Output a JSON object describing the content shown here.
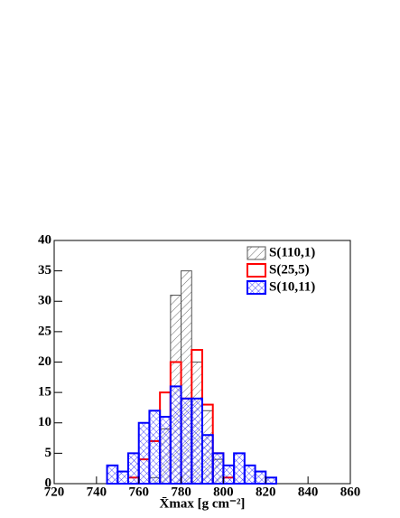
{
  "chart_data": {
    "type": "histogram",
    "x_label": "X̄max [g cm⁻²]",
    "bins": [
      720,
      725,
      730,
      735,
      740,
      745,
      750,
      755,
      760,
      765,
      770,
      775,
      780,
      785,
      790,
      795,
      800,
      805,
      810,
      815,
      820,
      825,
      830,
      835,
      840,
      845,
      850,
      855,
      860
    ],
    "series": [
      {
        "name": "S(110,1)",
        "color": "#555555",
        "hatch": "diagonal",
        "values": [
          0,
          0,
          0,
          0,
          0,
          0,
          0,
          0,
          0,
          1,
          9,
          31,
          35,
          20,
          12,
          4,
          0,
          0,
          0,
          0,
          0,
          0,
          0,
          0,
          0,
          0,
          0,
          0
        ]
      },
      {
        "name": "S(25,5)",
        "color": "#ff0000",
        "hatch": "none",
        "values": [
          0,
          0,
          0,
          0,
          0,
          0,
          0,
          1,
          4,
          7,
          15,
          20,
          14,
          22,
          13,
          5,
          1,
          0,
          0,
          0,
          0,
          0,
          0,
          0,
          0,
          0,
          0,
          0
        ]
      },
      {
        "name": "S(10,11)",
        "color": "#0000ff",
        "hatch": "cross",
        "values": [
          0,
          0,
          0,
          0,
          0,
          3,
          2,
          5,
          10,
          12,
          11,
          16,
          14,
          14,
          8,
          5,
          3,
          5,
          3,
          2,
          1,
          0,
          0,
          0,
          0,
          0,
          0,
          0
        ]
      }
    ],
    "xlim": [
      720,
      860
    ],
    "xticks": [
      720,
      740,
      760,
      780,
      800,
      820,
      840,
      860
    ],
    "ylim": [
      0,
      40
    ],
    "yticks": [
      0,
      5,
      10,
      15,
      20,
      25,
      30,
      35,
      40
    ]
  }
}
